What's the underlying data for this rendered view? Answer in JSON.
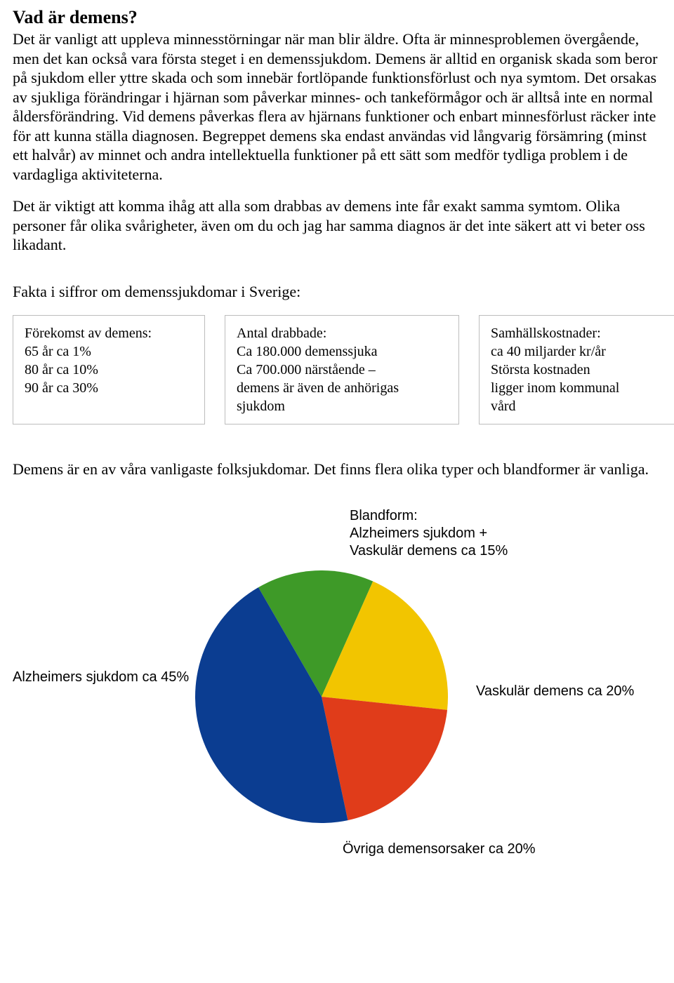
{
  "title": "Vad är demens?",
  "para1": "Det är vanligt att uppleva minnesstörningar när man blir äldre. Ofta är minnes­problemen övergående, men det kan också vara första steget i en demenssjukdom. Demens är alltid en organisk skada som beror på sjukdom eller yttre skada och som innebär fortlöpande funktionsförlust och nya symtom. Det orsakas av sjukliga förändringar i hjärnan som påverkar minnes- och tankeförmågor och är alltså inte en normal åldersförändring. Vid demens påverkas flera av hjärnans funktioner och enbart minnesförlust räcker inte för att kunna ställa diagnosen. Begreppet demens ska endast användas vid långvarig försämring (minst ett halvår) av minnet och andra intellektuella funktioner på ett sätt som medför tydliga problem i de vardagliga aktiviteterna.",
  "para2": "Det är viktigt att komma ihåg att alla som drabbas av demens inte får exakt samma symtom. Olika personer får olika svårigheter, även om du och jag har samma diagnos är det inte säkert att vi beter oss likadant.",
  "facts_heading": "Fakta i siffror om demenssjukdomar i Sverige:",
  "boxes": {
    "b1": "Förekomst av demens:\n65 år ca 1%\n80 år ca 10%\n90 år ca 30%",
    "b2": "Antal drabbade:\nCa 180.000 demenssjuka\nCa 700.000 närstående –\ndemens är även de anhörigas\nsjukdom",
    "b3": "Samhällskostnader:\nca 40 miljarder kr/år\nStörsta kostnaden\nligger inom kommunal\nvård"
  },
  "chart_intro": "Demens är en av våra vanligaste folksjukdomar. Det finns flera olika typer och blandformer är vanliga.",
  "pie": {
    "type": "pie",
    "slices": [
      {
        "label": "Blandform:\nAlzheimers sjukdom +\nVaskulär demens ca 15%",
        "value": 15,
        "color": "#3e9a28"
      },
      {
        "label": "Vaskulär demens ca 20%",
        "value": 20,
        "color": "#f2c500"
      },
      {
        "label": "Övriga demensorsaker ca 20%",
        "value": 20,
        "color": "#e03c1a"
      },
      {
        "label": "Alzheimers sjukdom ca 45%",
        "value": 45,
        "color": "#0b3d91"
      }
    ],
    "background_color": "#ffffff",
    "start_angle_deg": -30,
    "label_font_family": "Arial",
    "label_fontsize": 20
  }
}
